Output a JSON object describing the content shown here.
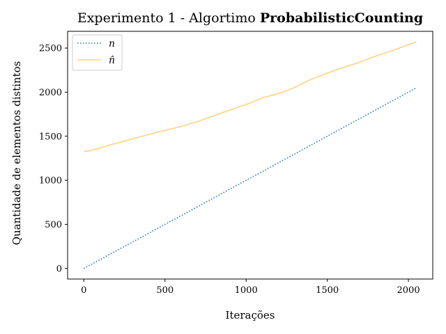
{
  "chart_data": {
    "type": "line",
    "title_prefix": "Experimento 1 - Algortimo ",
    "title_bold": "ProbabilisticCounting",
    "xlabel": "Iterações",
    "ylabel": "Quantidade de elementos distintos",
    "xlim": [
      -100,
      2150
    ],
    "ylim": [
      -120,
      2690
    ],
    "xticks": [
      0,
      500,
      1000,
      1500,
      2000
    ],
    "yticks": [
      0,
      500,
      1000,
      1500,
      2000,
      2500
    ],
    "legend_position": "top-left",
    "series": [
      {
        "name": "n",
        "color": "#1f77b4",
        "style": "dotted",
        "x": [
          0,
          2048
        ],
        "y": [
          0,
          2048
        ]
      },
      {
        "name": "n̂",
        "color": "#ffd27f",
        "style": "solid",
        "x": [
          0,
          50,
          100,
          150,
          200,
          250,
          300,
          350,
          400,
          450,
          500,
          550,
          600,
          650,
          700,
          750,
          800,
          850,
          900,
          950,
          1000,
          1050,
          1100,
          1150,
          1200,
          1250,
          1300,
          1350,
          1400,
          1450,
          1500,
          1550,
          1600,
          1650,
          1700,
          1750,
          1800,
          1850,
          1900,
          1950,
          2000,
          2048
        ],
        "y": [
          1325,
          1340,
          1365,
          1395,
          1420,
          1445,
          1470,
          1495,
          1520,
          1545,
          1565,
          1590,
          1610,
          1640,
          1665,
          1700,
          1730,
          1765,
          1795,
          1830,
          1860,
          1895,
          1935,
          1960,
          1985,
          2015,
          2055,
          2100,
          2145,
          2180,
          2215,
          2250,
          2280,
          2310,
          2340,
          2375,
          2410,
          2440,
          2470,
          2505,
          2540,
          2570
        ]
      }
    ]
  }
}
